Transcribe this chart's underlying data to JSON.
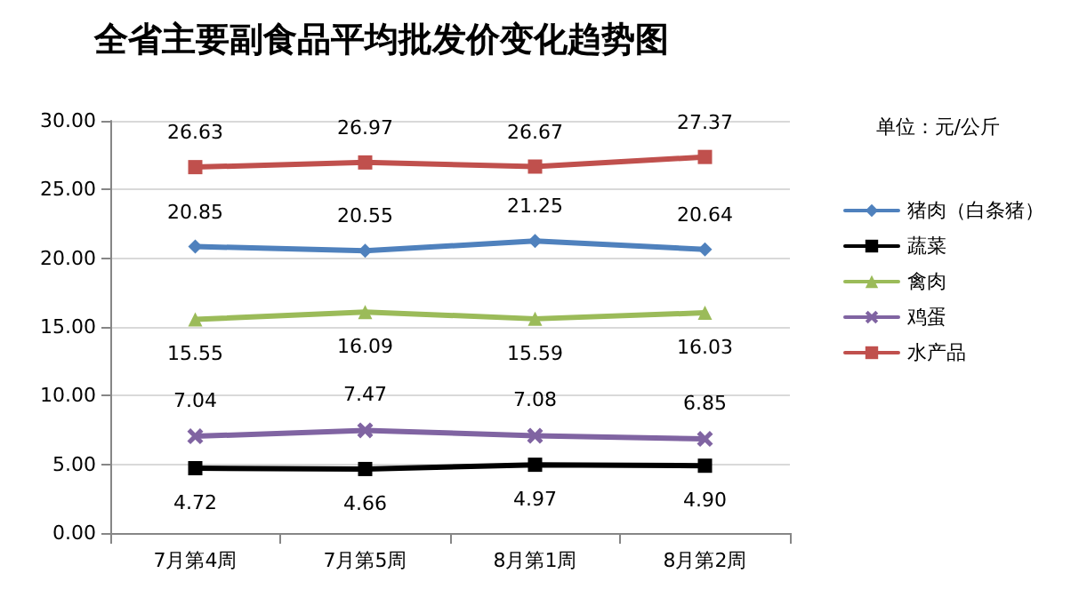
{
  "chart_data": {
    "type": "line",
    "title": "全省主要副食品平均批发价变化趋势图",
    "annotations": [
      "单位：元/公斤"
    ],
    "categories": [
      "7月第4周",
      "7月第5周",
      "8月第1周",
      "8月第2周"
    ],
    "series": [
      {
        "name": "猪肉（白条猪）",
        "color": "#4f81bd",
        "marker": "diamond",
        "values": [
          20.85,
          20.55,
          21.25,
          20.64
        ],
        "value_labels": [
          "20.85",
          "20.55",
          "21.25",
          "20.64"
        ]
      },
      {
        "name": "蔬菜",
        "color": "#000000",
        "marker": "square",
        "values": [
          4.72,
          4.66,
          4.97,
          4.9
        ],
        "value_labels": [
          "4.72",
          "4.66",
          "4.97",
          "4.90"
        ]
      },
      {
        "name": "禽肉",
        "color": "#9bbb59",
        "marker": "triangle",
        "values": [
          15.55,
          16.09,
          15.59,
          16.03
        ],
        "value_labels": [
          "15.55",
          "16.09",
          "15.59",
          "16.03"
        ]
      },
      {
        "name": "鸡蛋",
        "color": "#8064a2",
        "marker": "cross",
        "values": [
          7.04,
          7.47,
          7.08,
          6.85
        ],
        "value_labels": [
          "7.04",
          "7.47",
          "7.08",
          "6.85"
        ]
      },
      {
        "name": "水产品",
        "color": "#c0504d",
        "marker": "square",
        "values": [
          26.63,
          26.97,
          26.67,
          27.37
        ],
        "value_labels": [
          "26.63",
          "26.97",
          "26.67",
          "27.37"
        ]
      }
    ],
    "ylim": [
      0,
      30
    ],
    "yticks": [
      {
        "value": 0,
        "label": "0.00"
      },
      {
        "value": 5,
        "label": "5.00"
      },
      {
        "value": 10,
        "label": "10.00"
      },
      {
        "value": 15,
        "label": "15.00"
      },
      {
        "value": 20,
        "label": "20.00"
      },
      {
        "value": 25,
        "label": "25.00"
      },
      {
        "value": 30,
        "label": "30.00"
      }
    ],
    "grid": "y",
    "legend": "right"
  }
}
